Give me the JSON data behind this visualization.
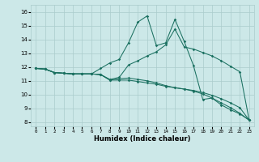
{
  "xlabel": "Humidex (Indice chaleur)",
  "ylabel": "",
  "bg_color": "#cce8e8",
  "grid_color": "#aacccc",
  "line_color": "#1a7060",
  "x_ticks": [
    0,
    1,
    2,
    3,
    4,
    5,
    6,
    7,
    8,
    9,
    10,
    11,
    12,
    13,
    14,
    15,
    16,
    17,
    18,
    19,
    20,
    21,
    22,
    23
  ],
  "x_tick_labels": [
    "0",
    "1",
    "2",
    "3",
    "4",
    "5",
    "6",
    "7",
    "8",
    "9",
    "10",
    "11",
    "12",
    "13",
    "14",
    "15",
    "16",
    "17",
    "18",
    "19",
    "20",
    "21",
    "22",
    "23"
  ],
  "y_ticks": [
    8,
    9,
    10,
    11,
    12,
    13,
    14,
    15,
    16
  ],
  "ylim": [
    7.7,
    16.5
  ],
  "xlim": [
    -0.5,
    23.5
  ],
  "line1_y": [
    11.9,
    11.85,
    11.6,
    11.55,
    11.5,
    11.5,
    11.5,
    11.45,
    11.05,
    11.05,
    11.05,
    10.95,
    10.85,
    10.75,
    10.6,
    10.5,
    10.4,
    10.3,
    10.15,
    9.95,
    9.7,
    9.4,
    9.05,
    8.15
  ],
  "line2_y": [
    11.9,
    11.85,
    11.6,
    11.55,
    11.5,
    11.5,
    11.5,
    11.45,
    11.05,
    11.15,
    11.2,
    11.1,
    11.0,
    10.85,
    10.65,
    10.5,
    10.4,
    10.25,
    10.05,
    9.75,
    9.4,
    9.05,
    8.65,
    8.15
  ],
  "line3_y": [
    11.9,
    11.85,
    11.6,
    11.55,
    11.5,
    11.5,
    11.5,
    11.9,
    12.3,
    12.55,
    13.75,
    15.25,
    15.7,
    13.55,
    13.75,
    15.45,
    13.85,
    12.1,
    9.65,
    9.75,
    9.25,
    8.9,
    8.6,
    8.15
  ],
  "line4_y": [
    11.9,
    11.85,
    11.6,
    11.55,
    11.5,
    11.5,
    11.5,
    11.45,
    11.1,
    11.25,
    12.15,
    12.45,
    12.8,
    13.1,
    13.6,
    14.75,
    13.45,
    13.3,
    13.05,
    12.8,
    12.45,
    12.05,
    11.65,
    8.15
  ],
  "marker": "D",
  "markersize": 1.8,
  "linewidth": 0.75
}
